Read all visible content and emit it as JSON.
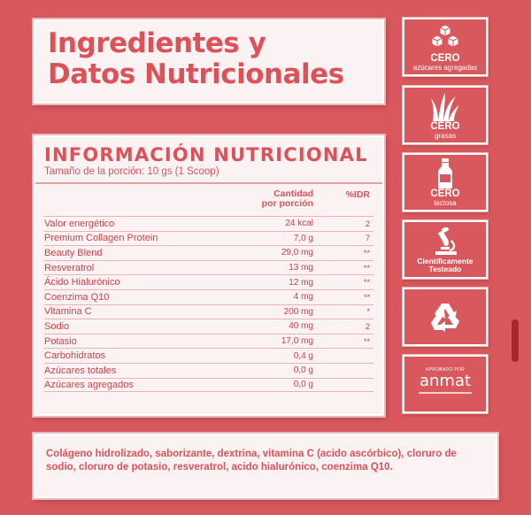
{
  "title": {
    "line1": "Ingredientes y",
    "line2": "Datos Nutricionales"
  },
  "nutrition": {
    "heading": "INFORMACIÓN NUTRICIONAL",
    "portion": "Tamaño de la porción: 10 gs (1 Scoop)",
    "col_amount_line1": "Cantidad",
    "col_amount_line2": "por porción",
    "col_idr": "%IDR",
    "rows": [
      {
        "name": "Valor energético",
        "amount": "24 kcal",
        "idr": "2"
      },
      {
        "name": "Premium Collagen Protein",
        "amount": "7,0 g",
        "idr": "7"
      },
      {
        "name": "Beauty Blend",
        "amount": "29,0 mg",
        "idr": "**"
      },
      {
        "name": "Resveratrol",
        "amount": "13 mg",
        "idr": "**"
      },
      {
        "name": "Ácido Hialurónico",
        "amount": "12 mg",
        "idr": "**"
      },
      {
        "name": "Coenzima Q10",
        "amount": "4 mg",
        "idr": "**"
      },
      {
        "name": "Vitamina C",
        "amount": "200 mg",
        "idr": "*"
      },
      {
        "name": "Sodio",
        "amount": "40 mg",
        "idr": "2"
      },
      {
        "name": "Potasio",
        "amount": "17,0 mg",
        "idr": "**"
      },
      {
        "name": "Carbohidratos",
        "amount": "0,4 g",
        "idr": ""
      },
      {
        "name": "Azúcares totales",
        "amount": "0,0 g",
        "idr": ""
      },
      {
        "name": "Azúcares agregados",
        "amount": "0,0 g",
        "idr": ""
      }
    ]
  },
  "ingredients": "Colágeno hidrolizado, saborizante, dextrina, vitamina C (acido ascórbico), cloruro de sodio, cloruro de potasio, resveratrol, acido hialurónico, coenzima Q10.",
  "badges": {
    "sugar": {
      "line1": "CERO",
      "line2": "azúcares agregadas",
      "icon": "sugar-cubes-icon"
    },
    "fat": {
      "line1": "CERO",
      "line2": "grasas",
      "icon": "grass-icon"
    },
    "lactose": {
      "line1": "CERO",
      "line2": "lactosa",
      "icon": "milk-bottle-icon"
    },
    "tested": {
      "line1": "Científicamente",
      "line2": "Testeado",
      "icon": "microscope-icon"
    },
    "recycle": {
      "icon": "recycle-icon"
    },
    "anmat": {
      "top": "APROBADO POR",
      "logo": "anmat",
      "icon": "anmat-logo"
    }
  },
  "colors": {
    "background": "#d9585d",
    "card": "#fbf3f3",
    "accent": "#dc5258"
  }
}
